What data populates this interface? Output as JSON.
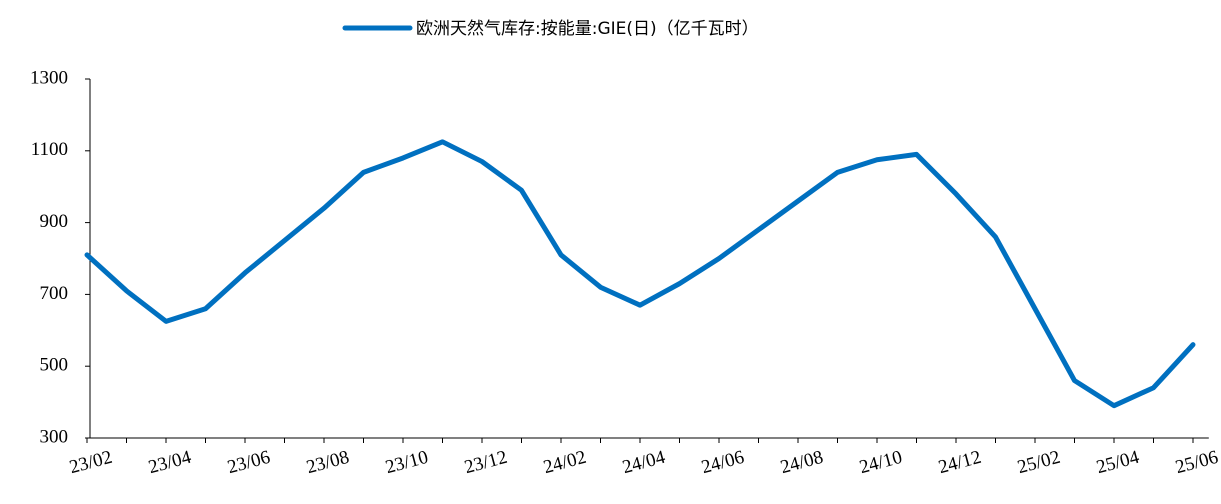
{
  "chart_data": {
    "type": "line",
    "categories": [
      "23/02",
      null,
      "23/04",
      null,
      "23/06",
      null,
      "23/08",
      null,
      "23/10",
      null,
      "23/12",
      null,
      "24/02",
      null,
      "24/04",
      null,
      "24/06",
      null,
      "24/08",
      null,
      "24/10",
      null,
      "24/12",
      null,
      "25/02",
      null,
      "25/04",
      null,
      "25/06"
    ],
    "series": [
      {
        "name": "欧洲天然气库存:按能量:GIE(日)（亿千瓦时）",
        "color": "#0070c0",
        "values": [
          810,
          710,
          625,
          660,
          760,
          850,
          940,
          1040,
          1080,
          1125,
          1070,
          990,
          810,
          720,
          670,
          730,
          800,
          880,
          960,
          1040,
          1075,
          1090,
          980,
          860,
          660,
          460,
          390,
          440,
          560
        ]
      }
    ],
    "ylim": [
      300,
      1300
    ],
    "yticks": [
      300,
      500,
      700,
      900,
      1100,
      1300
    ],
    "grid": false,
    "legend": "top"
  }
}
